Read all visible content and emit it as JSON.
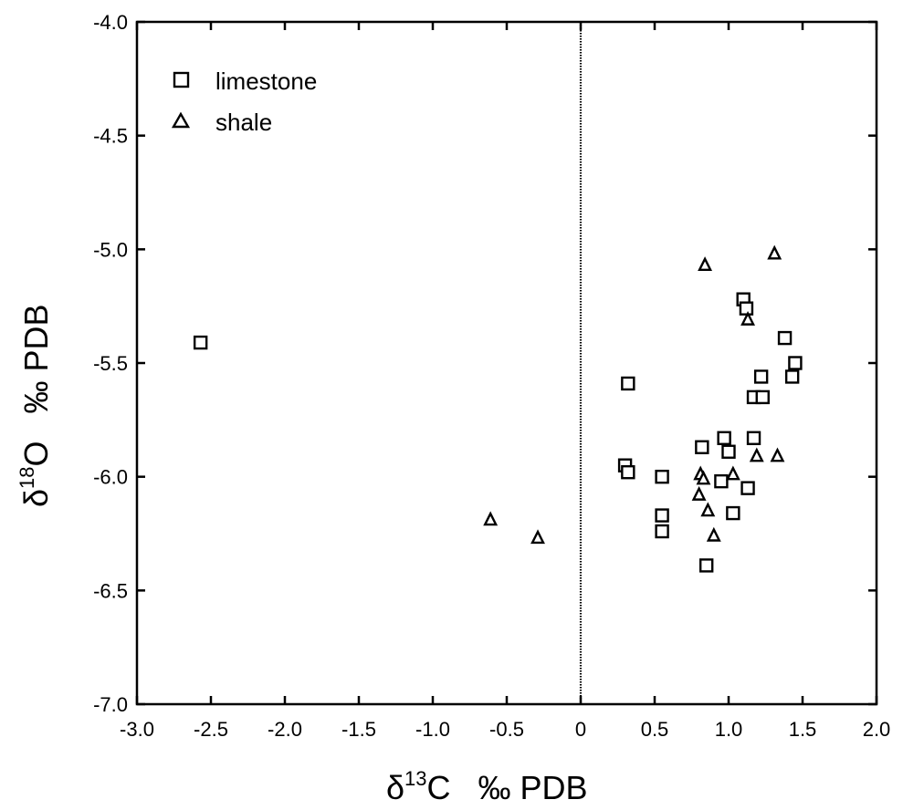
{
  "chart_data": {
    "type": "scatter",
    "xlabel_main": "δ",
    "xlabel_sup": "13",
    "xlabel_rest": "C   ‰ PDB",
    "ylabel_main": "δ",
    "ylabel_sup": "18",
    "ylabel_rest": "O   ‰ PDB",
    "xlim": [
      -3.0,
      2.0
    ],
    "ylim": [
      -7.0,
      -4.0
    ],
    "x_ticks": [
      -3.0,
      -2.5,
      -2.0,
      -1.5,
      -1.0,
      -0.5,
      0,
      0.5,
      1.0,
      1.5,
      2.0
    ],
    "x_tick_labels": [
      "-3.0",
      "-2.5",
      "-2.0",
      "-1.5",
      "-1.0",
      "-0.5",
      "0",
      "0.5",
      "1.0",
      "1.5",
      "2.0"
    ],
    "y_ticks": [
      -4.0,
      -4.5,
      -5.0,
      -5.5,
      -6.0,
      -6.5,
      -7.0
    ],
    "y_tick_labels": [
      "-4.0",
      "-4.5",
      "-5.0",
      "-5.5",
      "-6.0",
      "-6.5",
      "-7.0"
    ],
    "reference_line_x": 0,
    "grid": false,
    "legend_position": "top-left",
    "series": [
      {
        "name": "limestone",
        "marker": "square",
        "points": [
          [
            -2.57,
            -5.41
          ],
          [
            0.32,
            -5.59
          ],
          [
            0.3,
            -5.95
          ],
          [
            0.32,
            -5.98
          ],
          [
            0.55,
            -6.0
          ],
          [
            0.55,
            -6.17
          ],
          [
            0.55,
            -6.24
          ],
          [
            0.85,
            -6.39
          ],
          [
            0.82,
            -5.87
          ],
          [
            0.97,
            -5.83
          ],
          [
            1.0,
            -5.89
          ],
          [
            0.95,
            -6.02
          ],
          [
            1.03,
            -6.16
          ],
          [
            1.13,
            -6.05
          ],
          [
            1.17,
            -5.83
          ],
          [
            1.1,
            -5.22
          ],
          [
            1.12,
            -5.26
          ],
          [
            1.17,
            -5.65
          ],
          [
            1.23,
            -5.65
          ],
          [
            1.22,
            -5.56
          ],
          [
            1.38,
            -5.39
          ],
          [
            1.45,
            -5.5
          ],
          [
            1.43,
            -5.56
          ]
        ]
      },
      {
        "name": "shale",
        "marker": "triangle",
        "points": [
          [
            -0.61,
            -6.19
          ],
          [
            -0.29,
            -6.27
          ],
          [
            0.84,
            -5.07
          ],
          [
            1.31,
            -5.02
          ],
          [
            1.13,
            -5.31
          ],
          [
            0.81,
            -5.99
          ],
          [
            0.83,
            -6.01
          ],
          [
            0.8,
            -6.08
          ],
          [
            0.86,
            -6.15
          ],
          [
            0.9,
            -6.26
          ],
          [
            1.03,
            -5.99
          ],
          [
            1.19,
            -5.91
          ],
          [
            1.33,
            -5.91
          ]
        ]
      }
    ]
  }
}
